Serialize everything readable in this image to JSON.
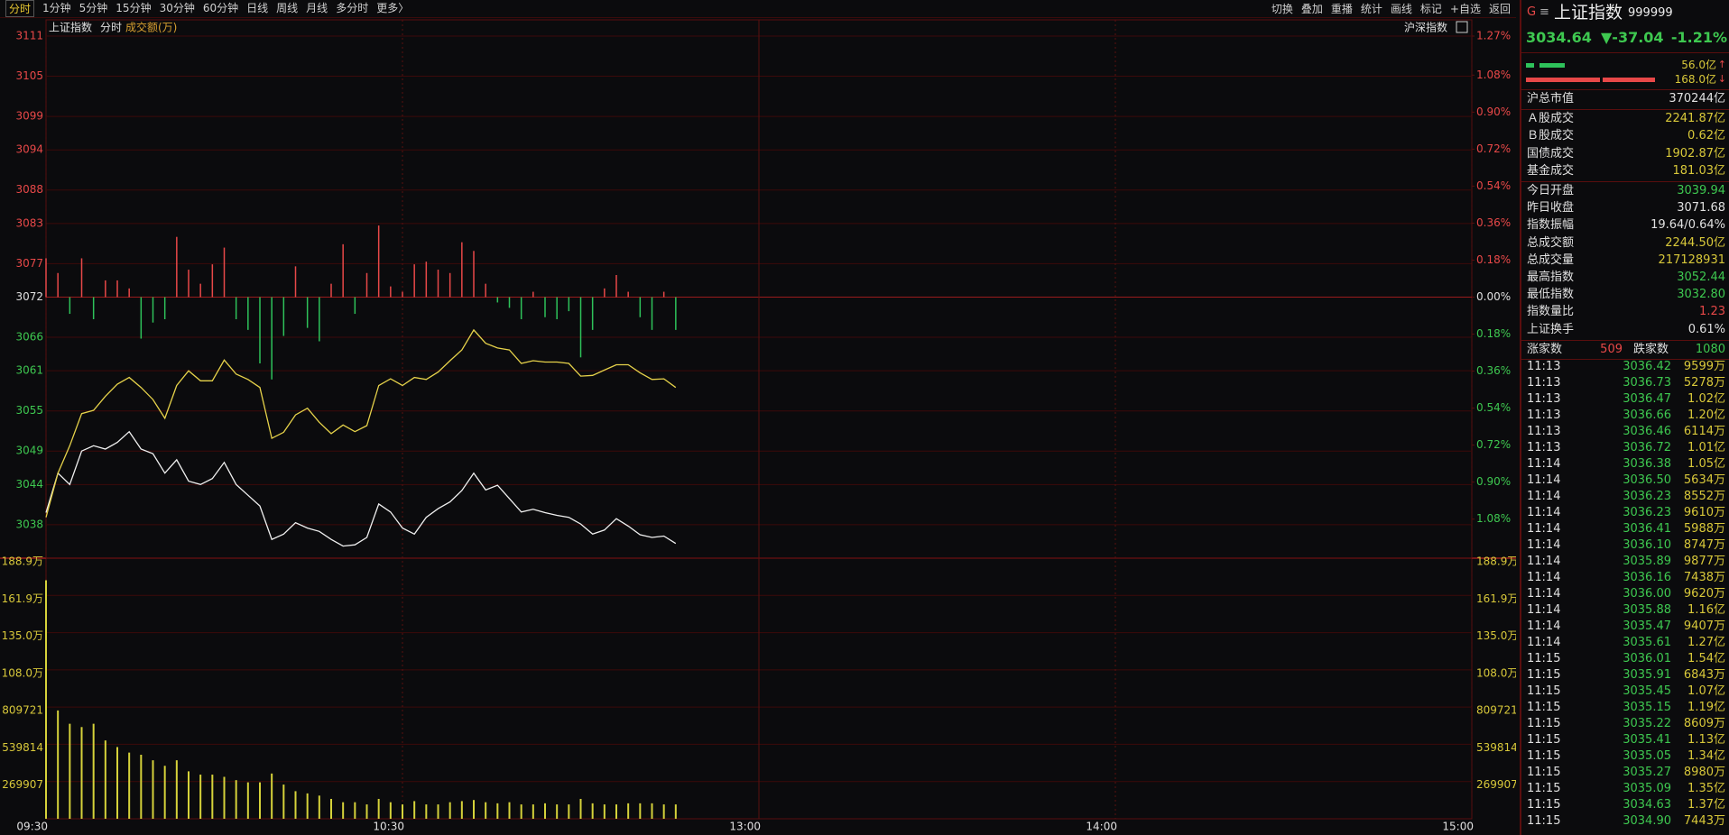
{
  "toolbar": {
    "left": [
      "分时",
      "1分钟",
      "5分钟",
      "15分钟",
      "30分钟",
      "60分钟",
      "日线",
      "周线",
      "月线",
      "多分时",
      "更多〉"
    ],
    "right": [
      "切换",
      "叠加",
      "重播",
      "统计",
      "画线",
      "标记",
      "+自选",
      "返回"
    ]
  },
  "chart_data": {
    "type": "line",
    "title": "上证指数",
    "mode_label": "分时",
    "volume_label": "成交额(万)",
    "right_label": "沪深指数",
    "x": [
      0,
      2,
      4,
      6,
      8,
      10,
      12,
      14,
      16,
      18,
      20,
      22,
      24,
      26,
      28,
      30,
      32,
      34,
      36,
      38,
      40,
      42,
      44,
      46,
      48,
      50,
      52,
      54,
      56,
      58,
      60,
      62,
      64,
      66,
      68,
      70,
      72,
      74,
      76,
      78,
      80,
      82,
      84,
      86,
      88,
      90,
      92,
      94,
      96,
      98,
      100,
      102,
      104,
      106
    ],
    "xlim": [
      0,
      240
    ],
    "xticks": [
      {
        "value": 0,
        "label": "09:30"
      },
      {
        "value": 60,
        "label": "10:30"
      },
      {
        "value": 120,
        "label": "13:00"
      },
      {
        "value": 180,
        "label": "14:00"
      },
      {
        "value": 240,
        "label": "15:00"
      }
    ],
    "ylim": [
      3033,
      3111
    ],
    "yticks": [
      3111,
      3105,
      3099,
      3094,
      3088,
      3083,
      3077,
      3072,
      3066,
      3061,
      3055,
      3049,
      3044,
      3038
    ],
    "y2lim": [
      -1.27,
      1.27
    ],
    "y2ticks": [
      {
        "value": 1.27,
        "label": "1.27%"
      },
      {
        "value": 1.08,
        "label": "1.08%"
      },
      {
        "value": 0.9,
        "label": "0.90%"
      },
      {
        "value": 0.72,
        "label": "0.72%"
      },
      {
        "value": 0.54,
        "label": "0.54%"
      },
      {
        "value": 0.36,
        "label": "0.36%"
      },
      {
        "value": 0.18,
        "label": "0.18%"
      },
      {
        "value": 0,
        "label": "0.00%"
      },
      {
        "value": -0.18,
        "label": "0.18%"
      },
      {
        "value": -0.36,
        "label": "0.36%"
      },
      {
        "value": -0.54,
        "label": "0.54%"
      },
      {
        "value": -0.72,
        "label": "0.72%"
      },
      {
        "value": -0.9,
        "label": "0.90%"
      },
      {
        "value": -1.08,
        "label": "1.08%"
      }
    ],
    "grid": true,
    "series": [
      {
        "color": "#f0f0f0",
        "values": [
          3039.8,
          3045.7,
          3044.0,
          3049.0,
          3049.8,
          3049.3,
          3050.3,
          3051.9,
          3049.3,
          3048.6,
          3045.7,
          3047.7,
          3044.5,
          3044.0,
          3044.9,
          3047.3,
          3044.0,
          3042.4,
          3040.8,
          3035.8,
          3036.6,
          3038.3,
          3037.5,
          3037.0,
          3035.8,
          3034.8,
          3035.0,
          3036.1,
          3041.1,
          3039.9,
          3037.5,
          3036.6,
          3039.1,
          3040.4,
          3041.4,
          3043.1,
          3045.7,
          3043.2,
          3043.9,
          3041.9,
          3039.9,
          3040.3,
          3039.8,
          3039.4,
          3039.1,
          3038.1,
          3036.6,
          3037.2,
          3038.9,
          3037.8,
          3036.5,
          3036.1,
          3036.3,
          3035.2
        ]
      },
      {
        "color": "#e6d24a",
        "values": [
          3039.1,
          3045.7,
          3049.8,
          3054.6,
          3055.1,
          3057.2,
          3059.0,
          3060.0,
          3058.5,
          3056.7,
          3053.9,
          3058.8,
          3061.0,
          3059.5,
          3059.5,
          3062.6,
          3060.5,
          3059.7,
          3058.5,
          3050.9,
          3051.8,
          3054.4,
          3055.4,
          3053.3,
          3051.6,
          3052.9,
          3051.9,
          3052.8,
          3058.8,
          3059.8,
          3058.8,
          3060.0,
          3059.7,
          3060.8,
          3062.5,
          3064.1,
          3067.1,
          3065.1,
          3064.4,
          3064.1,
          3062.1,
          3062.5,
          3062.3,
          3062.3,
          3062.1,
          3060.2,
          3060.3,
          3061.1,
          3061.9,
          3061.9,
          3060.7,
          3059.7,
          3059.8,
          3058.5
        ]
      }
    ],
    "breadth": {
      "up_color": "#e84848",
      "down_color": "#2ec25a",
      "values": [
        3077.8,
        3075.6,
        3069.5,
        3077.8,
        3068.7,
        3074.5,
        3074.5,
        3073.3,
        3065.8,
        3068.2,
        3068.7,
        3081.0,
        3076.1,
        3074.0,
        3076.9,
        3079.4,
        3068.7,
        3067.1,
        3062.1,
        3059.7,
        3066.2,
        3076.6,
        3067.4,
        3065.4,
        3074.0,
        3079.9,
        3069.5,
        3075.6,
        3082.7,
        3073.6,
        3072.8,
        3076.9,
        3077.3,
        3076.1,
        3075.6,
        3080.2,
        3078.9,
        3074.0,
        3071.2,
        3070.4,
        3068.7,
        3072.8,
        3069.0,
        3068.7,
        3069.9,
        3063.0,
        3067.1,
        3073.3,
        3075.3,
        3072.8,
        3069.0,
        3067.1,
        3072.8,
        3067.1
      ]
    },
    "volume": {
      "type": "bar",
      "color": "#d6d23a",
      "ylim": [
        0,
        1889349
      ],
      "yticks": [
        {
          "value": 1889349,
          "label": "188.9万"
        },
        {
          "value": 1619442,
          "label": "161.9万"
        },
        {
          "value": 1349535,
          "label": "135.0万"
        },
        {
          "value": 1079628,
          "label": "108.0万"
        },
        809721,
        539814,
        269907
      ],
      "values": [
        1729000,
        785000,
        689000,
        665000,
        689000,
        568000,
        520000,
        480000,
        464000,
        424000,
        384000,
        424000,
        344000,
        320000,
        320000,
        304000,
        280000,
        264000,
        264000,
        328000,
        248000,
        200000,
        184000,
        168000,
        144000,
        120000,
        120000,
        104000,
        144000,
        120000,
        104000,
        128000,
        104000,
        104000,
        120000,
        128000,
        136000,
        120000,
        112000,
        120000,
        104000,
        104000,
        112000,
        104000,
        104000,
        144000,
        112000,
        104000,
        104000,
        112000,
        112000,
        112000,
        104000,
        104000
      ]
    }
  },
  "quote": {
    "flag": "G",
    "menu": "≡",
    "name": "上证指数",
    "code": "999999",
    "price": "3034.64",
    "change": "▼-37.04",
    "pct": "-1.21%",
    "buy_amount": "56.0亿",
    "buy_arrow": "↑",
    "sell_amount": "168.0亿",
    "sell_arrow": "↓"
  },
  "stats": [
    [
      {
        "label": "沪总市值",
        "value": "370244亿",
        "color": "#e0e0e0"
      }
    ],
    [
      {
        "label": "Ａ股成交",
        "value": "2241.87亿",
        "color": "#d8c83a"
      },
      {
        "label": "Ｂ股成交",
        "value": "0.62亿",
        "color": "#d8c83a"
      },
      {
        "label": "国债成交",
        "value": "1902.87亿",
        "color": "#d8c83a"
      },
      {
        "label": "基金成交",
        "value": "181.03亿",
        "color": "#d8c83a"
      }
    ],
    [
      {
        "label": "今日开盘",
        "value": "3039.94",
        "color": "#3ec850"
      },
      {
        "label": "昨日收盘",
        "value": "3071.68",
        "color": "#e0e0e0"
      },
      {
        "label": "指数振幅",
        "value": "19.64/0.64%",
        "color": "#e0e0e0"
      },
      {
        "label": "总成交额",
        "value": "2244.50亿",
        "color": "#d8c83a"
      },
      {
        "label": "总成交量",
        "value": "217128931",
        "color": "#d8c83a"
      },
      {
        "label": "最高指数",
        "value": "3052.44",
        "color": "#3ec850"
      },
      {
        "label": "最低指数",
        "value": "3032.80",
        "color": "#3ec850"
      },
      {
        "label": "指数量比",
        "value": "1.23",
        "color": "#e84848"
      },
      {
        "label": "上证换手",
        "value": "0.61%",
        "color": "#e0e0e0"
      }
    ]
  ],
  "counts": {
    "up_label": "涨家数",
    "up": "509",
    "down_label": "跌家数",
    "down": "1080"
  },
  "ticks": [
    [
      "11:13",
      "3036.42",
      "9599万"
    ],
    [
      "11:13",
      "3036.73",
      "5278万"
    ],
    [
      "11:13",
      "3036.47",
      "1.02亿"
    ],
    [
      "11:13",
      "3036.66",
      "1.20亿"
    ],
    [
      "11:13",
      "3036.46",
      "6114万"
    ],
    [
      "11:13",
      "3036.72",
      "1.01亿"
    ],
    [
      "11:14",
      "3036.38",
      "1.05亿"
    ],
    [
      "11:14",
      "3036.50",
      "5634万"
    ],
    [
      "11:14",
      "3036.23",
      "8552万"
    ],
    [
      "11:14",
      "3036.23",
      "9610万"
    ],
    [
      "11:14",
      "3036.41",
      "5988万"
    ],
    [
      "11:14",
      "3036.10",
      "8747万"
    ],
    [
      "11:14",
      "3035.89",
      "9877万"
    ],
    [
      "11:14",
      "3036.16",
      "7438万"
    ],
    [
      "11:14",
      "3036.00",
      "9620万"
    ],
    [
      "11:14",
      "3035.88",
      "1.16亿"
    ],
    [
      "11:14",
      "3035.47",
      "9407万"
    ],
    [
      "11:14",
      "3035.61",
      "1.27亿"
    ],
    [
      "11:15",
      "3036.01",
      "1.54亿"
    ],
    [
      "11:15",
      "3035.91",
      "6843万"
    ],
    [
      "11:15",
      "3035.45",
      "1.07亿"
    ],
    [
      "11:15",
      "3035.15",
      "1.19亿"
    ],
    [
      "11:15",
      "3035.22",
      "8609万"
    ],
    [
      "11:15",
      "3035.41",
      "1.13亿"
    ],
    [
      "11:15",
      "3035.05",
      "1.34亿"
    ],
    [
      "11:15",
      "3035.27",
      "8980万"
    ],
    [
      "11:15",
      "3035.09",
      "1.35亿"
    ],
    [
      "11:15",
      "3034.63",
      "1.37亿"
    ],
    [
      "11:15",
      "3034.90",
      "7443万"
    ]
  ]
}
